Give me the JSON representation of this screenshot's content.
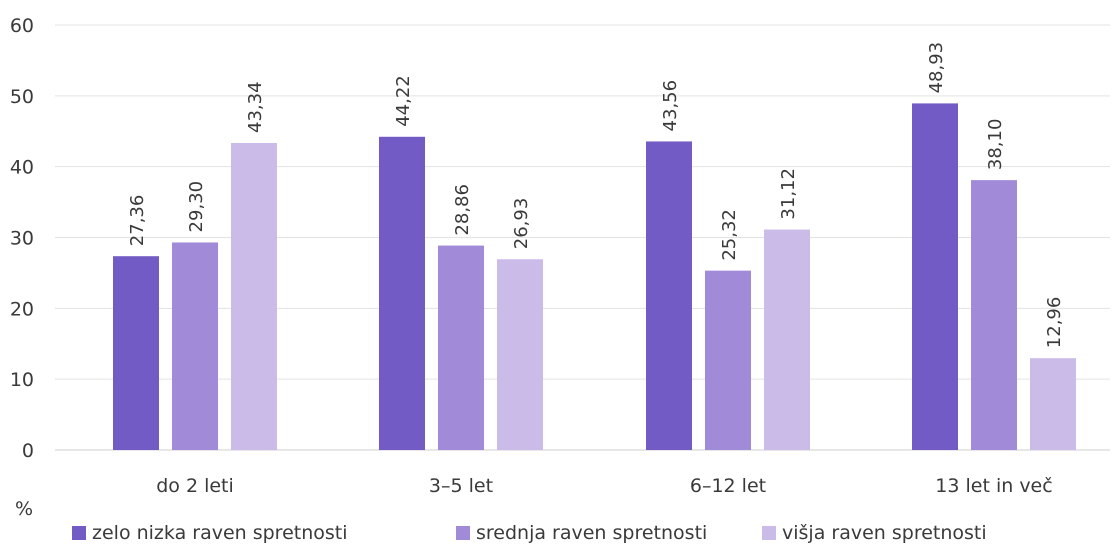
{
  "chart_data": {
    "type": "bar",
    "title": "",
    "xlabel": "",
    "ylabel": "%",
    "ylim": [
      0,
      60
    ],
    "yticks": [
      0,
      10,
      20,
      30,
      40,
      50,
      60
    ],
    "grid": true,
    "legend_position": "bottom",
    "categories": [
      "do 2 leti",
      "3–5 let",
      "6–12 let",
      "13 let in več"
    ],
    "series": [
      {
        "name": "zelo nizka raven spretnosti",
        "color": "#735bc5",
        "values": [
          27.36,
          44.22,
          43.56,
          48.93
        ],
        "labels": [
          "27,36",
          "44,22",
          "43,56",
          "48,93"
        ]
      },
      {
        "name": "srednja raven spretnosti",
        "color": "#a18bd8",
        "values": [
          29.3,
          28.86,
          25.32,
          38.1
        ],
        "labels": [
          "29,30",
          "28,86",
          "25,32",
          "38,10"
        ]
      },
      {
        "name": "višja raven spretnosti",
        "color": "#cbbbe9",
        "values": [
          43.34,
          26.93,
          31.12,
          12.96
        ],
        "labels": [
          "43,34",
          "26,93",
          "31,12",
          "12,96"
        ]
      }
    ]
  }
}
